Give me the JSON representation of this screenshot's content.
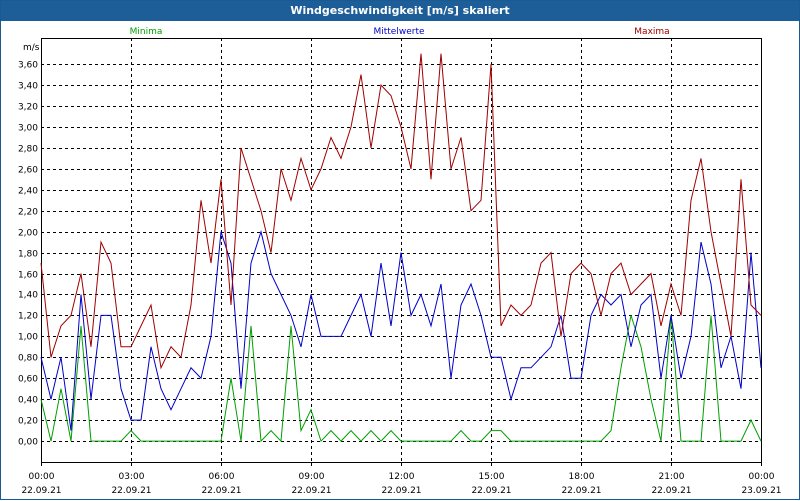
{
  "window": {
    "title": "Windgeschwindigkeit [m/s] skaliert"
  },
  "chart_data": {
    "type": "line",
    "title": "Windgeschwindigkeit [m/s] skaliert",
    "ylabel": "m/s",
    "xlabel": "",
    "ylim": [
      -0.2,
      3.85
    ],
    "y_ticks": [
      "0,00",
      "0,20",
      "0,40",
      "0,60",
      "0,80",
      "1,00",
      "1,20",
      "1,40",
      "1,60",
      "1,80",
      "2,00",
      "2,20",
      "2,40",
      "2,60",
      "2,80",
      "3,00",
      "3,20",
      "3,40",
      "3,60"
    ],
    "x_ticks": [
      {
        "time": "00:00",
        "date": "22.09.21"
      },
      {
        "time": "03:00",
        "date": "22.09.21"
      },
      {
        "time": "06:00",
        "date": "22.09.21"
      },
      {
        "time": "09:00",
        "date": "22.09.21"
      },
      {
        "time": "12:00",
        "date": "22.09.21"
      },
      {
        "time": "15:00",
        "date": "22.09.21"
      },
      {
        "time": "18:00",
        "date": "22.09.21"
      },
      {
        "time": "21:00",
        "date": "22.09.21"
      },
      {
        "time": "00:00",
        "date": "23.09.21"
      }
    ],
    "xlim": [
      "22.09.21 00:00",
      "23.09.21 00:00"
    ],
    "grid": true,
    "legend_position": "top",
    "series": [
      {
        "name": "Minima",
        "color": "#00a000",
        "x": [
          "22.09.21 00:00",
          "22.09.21 00:20",
          "22.09.21 00:40",
          "22.09.21 01:00",
          "22.09.21 01:20",
          "22.09.21 01:40",
          "22.09.21 02:00",
          "22.09.21 02:20",
          "22.09.21 02:40",
          "22.09.21 03:00",
          "22.09.21 03:20",
          "22.09.21 03:40",
          "22.09.21 04:00",
          "22.09.21 04:20",
          "22.09.21 04:40",
          "22.09.21 05:00",
          "22.09.21 05:20",
          "22.09.21 05:40",
          "22.09.21 06:00",
          "22.09.21 06:20",
          "22.09.21 06:40",
          "22.09.21 07:00",
          "22.09.21 07:20",
          "22.09.21 07:40",
          "22.09.21 08:00",
          "22.09.21 08:20",
          "22.09.21 08:40",
          "22.09.21 09:00",
          "22.09.21 09:20",
          "22.09.21 09:40",
          "22.09.21 10:00",
          "22.09.21 10:20",
          "22.09.21 10:40",
          "22.09.21 11:00",
          "22.09.21 11:20",
          "22.09.21 11:40",
          "22.09.21 12:00",
          "22.09.21 12:20",
          "22.09.21 12:40",
          "22.09.21 13:00",
          "22.09.21 13:20",
          "22.09.21 13:40",
          "22.09.21 14:00",
          "22.09.21 14:20",
          "22.09.21 14:40",
          "22.09.21 15:00",
          "22.09.21 15:20",
          "22.09.21 15:40",
          "22.09.21 16:00",
          "22.09.21 16:20",
          "22.09.21 16:40",
          "22.09.21 17:00",
          "22.09.21 17:20",
          "22.09.21 17:40",
          "22.09.21 18:00",
          "22.09.21 18:20",
          "22.09.21 18:40",
          "22.09.21 19:00",
          "22.09.21 19:20",
          "22.09.21 19:40",
          "22.09.21 20:00",
          "22.09.21 20:20",
          "22.09.21 20:40",
          "22.09.21 21:00",
          "22.09.21 21:20",
          "22.09.21 21:40",
          "22.09.21 22:00",
          "22.09.21 22:20",
          "22.09.21 22:40",
          "22.09.21 23:00",
          "22.09.21 23:20",
          "22.09.21 23:40",
          "23.09.21 00:00"
        ],
        "values": [
          0.4,
          0.0,
          0.5,
          0.0,
          1.1,
          0.0,
          0.0,
          0.0,
          0.0,
          0.1,
          0.0,
          0.0,
          0.0,
          0.0,
          0.0,
          0.0,
          0.0,
          0.0,
          0.0,
          0.6,
          0.0,
          1.1,
          0.0,
          0.1,
          0.0,
          1.1,
          0.1,
          0.3,
          0.0,
          0.1,
          0.0,
          0.1,
          0.0,
          0.1,
          0.0,
          0.1,
          0.0,
          0.0,
          0.0,
          0.0,
          0.0,
          0.0,
          0.1,
          0.0,
          0.0,
          0.1,
          0.1,
          0.0,
          0.0,
          0.0,
          0.0,
          0.0,
          0.0,
          0.0,
          0.0,
          0.0,
          0.0,
          0.1,
          0.7,
          1.2,
          0.9,
          0.4,
          0.0,
          1.2,
          0.0,
          0.0,
          0.0,
          1.2,
          0.0,
          0.0,
          0.0,
          0.2,
          0.0
        ]
      },
      {
        "name": "Mittelwerte",
        "color": "#0000c8",
        "x": [
          "22.09.21 00:00",
          "22.09.21 00:20",
          "22.09.21 00:40",
          "22.09.21 01:00",
          "22.09.21 01:20",
          "22.09.21 01:40",
          "22.09.21 02:00",
          "22.09.21 02:20",
          "22.09.21 02:40",
          "22.09.21 03:00",
          "22.09.21 03:20",
          "22.09.21 03:40",
          "22.09.21 04:00",
          "22.09.21 04:20",
          "22.09.21 04:40",
          "22.09.21 05:00",
          "22.09.21 05:20",
          "22.09.21 05:40",
          "22.09.21 06:00",
          "22.09.21 06:20",
          "22.09.21 06:40",
          "22.09.21 07:00",
          "22.09.21 07:20",
          "22.09.21 07:40",
          "22.09.21 08:00",
          "22.09.21 08:20",
          "22.09.21 08:40",
          "22.09.21 09:00",
          "22.09.21 09:20",
          "22.09.21 09:40",
          "22.09.21 10:00",
          "22.09.21 10:20",
          "22.09.21 10:40",
          "22.09.21 11:00",
          "22.09.21 11:20",
          "22.09.21 11:40",
          "22.09.21 12:00",
          "22.09.21 12:20",
          "22.09.21 12:40",
          "22.09.21 13:00",
          "22.09.21 13:20",
          "22.09.21 13:40",
          "22.09.21 14:00",
          "22.09.21 14:20",
          "22.09.21 14:40",
          "22.09.21 15:00",
          "22.09.21 15:20",
          "22.09.21 15:40",
          "22.09.21 16:00",
          "22.09.21 16:20",
          "22.09.21 16:40",
          "22.09.21 17:00",
          "22.09.21 17:20",
          "22.09.21 17:40",
          "22.09.21 18:00",
          "22.09.21 18:20",
          "22.09.21 18:40",
          "22.09.21 19:00",
          "22.09.21 19:20",
          "22.09.21 19:40",
          "22.09.21 20:00",
          "22.09.21 20:20",
          "22.09.21 20:40",
          "22.09.21 21:00",
          "22.09.21 21:20",
          "22.09.21 21:40",
          "22.09.21 22:00",
          "22.09.21 22:20",
          "22.09.21 22:40",
          "22.09.21 23:00",
          "22.09.21 23:20",
          "22.09.21 23:40",
          "23.09.21 00:00"
        ],
        "values": [
          0.8,
          0.4,
          0.8,
          0.1,
          1.4,
          0.4,
          1.2,
          1.2,
          0.5,
          0.2,
          0.2,
          0.9,
          0.5,
          0.3,
          0.5,
          0.7,
          0.6,
          1.0,
          2.0,
          1.7,
          0.5,
          1.7,
          2.0,
          1.6,
          1.4,
          1.2,
          0.9,
          1.4,
          1.0,
          1.0,
          1.0,
          1.2,
          1.4,
          1.0,
          1.7,
          1.1,
          1.8,
          1.2,
          1.4,
          1.1,
          1.5,
          0.6,
          1.3,
          1.5,
          1.2,
          0.8,
          0.8,
          0.4,
          0.7,
          0.7,
          0.8,
          0.9,
          1.2,
          0.6,
          0.6,
          1.2,
          1.4,
          1.3,
          1.4,
          0.9,
          1.3,
          1.4,
          0.6,
          1.2,
          0.6,
          1.0,
          1.9,
          1.5,
          0.7,
          1.0,
          0.5,
          1.8,
          0.7
        ]
      },
      {
        "name": "Maxima",
        "color": "#a00000",
        "x": [
          "22.09.21 00:00",
          "22.09.21 00:20",
          "22.09.21 00:40",
          "22.09.21 01:00",
          "22.09.21 01:20",
          "22.09.21 01:40",
          "22.09.21 02:00",
          "22.09.21 02:20",
          "22.09.21 02:40",
          "22.09.21 03:00",
          "22.09.21 03:20",
          "22.09.21 03:40",
          "22.09.21 04:00",
          "22.09.21 04:20",
          "22.09.21 04:40",
          "22.09.21 05:00",
          "22.09.21 05:20",
          "22.09.21 05:40",
          "22.09.21 06:00",
          "22.09.21 06:20",
          "22.09.21 06:40",
          "22.09.21 07:00",
          "22.09.21 07:20",
          "22.09.21 07:40",
          "22.09.21 08:00",
          "22.09.21 08:20",
          "22.09.21 08:40",
          "22.09.21 09:00",
          "22.09.21 09:20",
          "22.09.21 09:40",
          "22.09.21 10:00",
          "22.09.21 10:20",
          "22.09.21 10:40",
          "22.09.21 11:00",
          "22.09.21 11:20",
          "22.09.21 11:40",
          "22.09.21 12:00",
          "22.09.21 12:20",
          "22.09.21 12:40",
          "22.09.21 13:00",
          "22.09.21 13:20",
          "22.09.21 13:40",
          "22.09.21 14:00",
          "22.09.21 14:20",
          "22.09.21 14:40",
          "22.09.21 15:00",
          "22.09.21 15:20",
          "22.09.21 15:40",
          "22.09.21 16:00",
          "22.09.21 16:20",
          "22.09.21 16:40",
          "22.09.21 17:00",
          "22.09.21 17:20",
          "22.09.21 17:40",
          "22.09.21 18:00",
          "22.09.21 18:20",
          "22.09.21 18:40",
          "22.09.21 19:00",
          "22.09.21 19:20",
          "22.09.21 19:40",
          "22.09.21 20:00",
          "22.09.21 20:20",
          "22.09.21 20:40",
          "22.09.21 21:00",
          "22.09.21 21:20",
          "22.09.21 21:40",
          "22.09.21 22:00",
          "22.09.21 22:20",
          "22.09.21 22:40",
          "22.09.21 23:00",
          "22.09.21 23:20",
          "22.09.21 23:40",
          "23.09.21 00:00"
        ],
        "values": [
          1.7,
          0.8,
          1.1,
          1.2,
          1.6,
          0.9,
          1.9,
          1.7,
          0.9,
          0.9,
          1.1,
          1.3,
          0.7,
          0.9,
          0.8,
          1.3,
          2.3,
          1.7,
          2.5,
          1.3,
          2.8,
          2.5,
          2.2,
          1.8,
          2.6,
          2.3,
          2.7,
          2.4,
          2.6,
          2.9,
          2.7,
          3.0,
          3.5,
          2.8,
          3.4,
          3.3,
          3.0,
          2.6,
          3.7,
          2.5,
          3.7,
          2.6,
          2.9,
          2.2,
          2.3,
          3.6,
          1.1,
          1.3,
          1.2,
          1.3,
          1.7,
          1.8,
          1.0,
          1.6,
          1.7,
          1.6,
          1.2,
          1.6,
          1.7,
          1.4,
          1.5,
          1.6,
          1.1,
          1.5,
          1.2,
          2.3,
          2.7,
          2.0,
          1.5,
          1.0,
          2.5,
          1.3,
          1.2
        ]
      }
    ]
  }
}
